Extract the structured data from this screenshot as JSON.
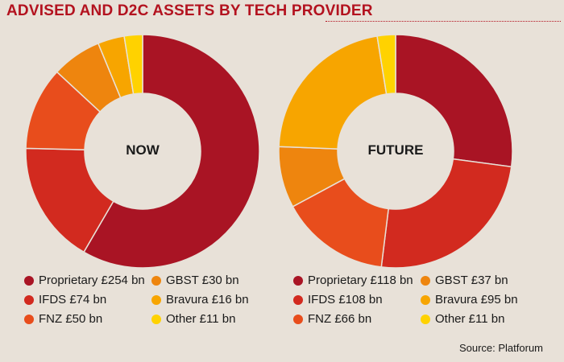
{
  "title": "ADVISED AND D2C ASSETS BY TECH PROVIDER",
  "source": "Source: Platforum",
  "chart_data": [
    {
      "type": "pie",
      "title": "NOW",
      "center_label": "NOW",
      "unit": "£ bn",
      "slices": [
        {
          "name": "Proprietary",
          "value": 254,
          "label": "Proprietary £254 bn",
          "color": "#a91424"
        },
        {
          "name": "IFDS",
          "value": 74,
          "label": "IFDS £74 bn",
          "color": "#d22a1f"
        },
        {
          "name": "FNZ",
          "value": 50,
          "label": "FNZ £50 bn",
          "color": "#e84d1c"
        },
        {
          "name": "GBST",
          "value": 30,
          "label": "GBST £30 bn",
          "color": "#ee850e"
        },
        {
          "name": "Bravura",
          "value": 16,
          "label": "Bravura £16 bn",
          "color": "#f7a500"
        },
        {
          "name": "Other",
          "value": 11,
          "label": "Other £11 bn",
          "color": "#ffd200"
        }
      ]
    },
    {
      "type": "pie",
      "title": "FUTURE",
      "center_label": "FUTURE",
      "unit": "£ bn",
      "slices": [
        {
          "name": "Proprietary",
          "value": 118,
          "label": "Proprietary £118 bn",
          "color": "#a91424"
        },
        {
          "name": "IFDS",
          "value": 108,
          "label": "IFDS £108 bn",
          "color": "#d22a1f"
        },
        {
          "name": "FNZ",
          "value": 66,
          "label": "FNZ £66 bn",
          "color": "#e84d1c"
        },
        {
          "name": "GBST",
          "value": 37,
          "label": "GBST £37 bn",
          "color": "#ee850e"
        },
        {
          "name": "Bravura",
          "value": 95,
          "label": "Bravura £95 bn",
          "color": "#f7a500"
        },
        {
          "name": "Other",
          "value": 11,
          "label": "Other £11 bn",
          "color": "#ffd200"
        }
      ]
    }
  ]
}
